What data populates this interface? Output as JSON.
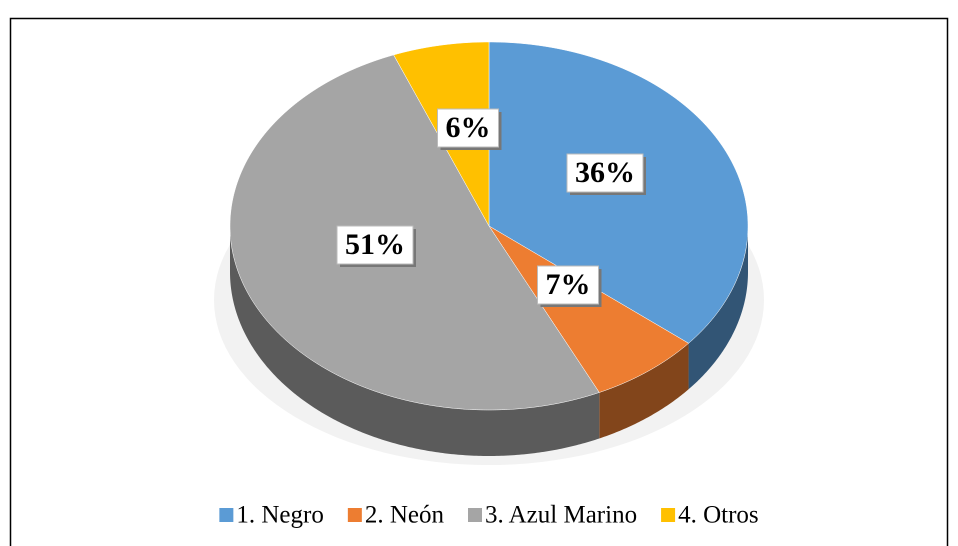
{
  "chart_data": {
    "type": "pie",
    "categories": [
      "1. Negro",
      "2. Neón",
      "3. Azul Marino",
      "4. Otros"
    ],
    "values": [
      36,
      7,
      51,
      6
    ],
    "value_labels": [
      "36%",
      "7%",
      "51%",
      "6%"
    ],
    "colors": [
      "#5b9bd5",
      "#ed7d31",
      "#a5a5a5",
      "#ffc000"
    ],
    "legend": "bottom"
  }
}
